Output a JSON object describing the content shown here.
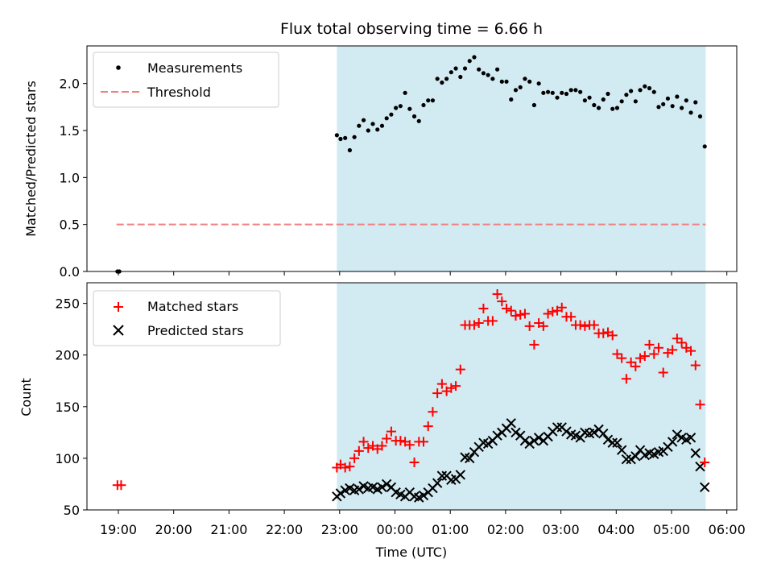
{
  "figure": {
    "title": "Flux total observing time = 6.66 h"
  },
  "colors": {
    "measurement": "#000000",
    "threshold": "#f08080",
    "matched": "#ff0000",
    "predicted": "#000000",
    "observing_span": "#add8e6"
  },
  "chart_data": [
    {
      "type": "scatter",
      "panel": "top",
      "title": "Flux total observing time = 6.66 h",
      "ylabel": "Matched/Predicted stars",
      "xlabel": "",
      "ylim": [
        0,
        2.4
      ],
      "yticks": [
        0.0,
        0.5,
        1.0,
        1.5,
        2.0
      ],
      "ytick_labels": [
        "0.0",
        "0.5",
        "1.0",
        "1.5",
        "2.0"
      ],
      "grid": false,
      "legend_position": "top-left",
      "shaded_span": [
        "22:57",
        "05:37"
      ],
      "legend": {
        "measurements": "Measurements",
        "threshold": "Threshold"
      },
      "threshold": {
        "y": 0.5,
        "x_range": [
          "18:58",
          "05:37"
        ]
      },
      "series": [
        {
          "name": "Measurements",
          "points": [
            [
              "18:59",
              0.0
            ],
            [
              "19:01",
              0.0
            ],
            [
              "22:57",
              1.45
            ],
            [
              "23:01",
              1.41
            ],
            [
              "23:06",
              1.42
            ],
            [
              "23:11",
              1.29
            ],
            [
              "23:16",
              1.43
            ],
            [
              "23:21",
              1.55
            ],
            [
              "23:26",
              1.61
            ],
            [
              "23:31",
              1.5
            ],
            [
              "23:36",
              1.57
            ],
            [
              "23:41",
              1.51
            ],
            [
              "23:46",
              1.55
            ],
            [
              "23:51",
              1.63
            ],
            [
              "23:56",
              1.67
            ],
            [
              "00:01",
              1.74
            ],
            [
              "00:06",
              1.76
            ],
            [
              "00:11",
              1.9
            ],
            [
              "00:16",
              1.73
            ],
            [
              "00:21",
              1.65
            ],
            [
              "00:26",
              1.6
            ],
            [
              "00:31",
              1.77
            ],
            [
              "00:36",
              1.82
            ],
            [
              "00:41",
              1.82
            ],
            [
              "00:46",
              2.05
            ],
            [
              "00:51",
              2.01
            ],
            [
              "00:56",
              2.05
            ],
            [
              "01:01",
              2.12
            ],
            [
              "01:06",
              2.16
            ],
            [
              "01:11",
              2.07
            ],
            [
              "01:16",
              2.16
            ],
            [
              "01:21",
              2.24
            ],
            [
              "01:26",
              2.28
            ],
            [
              "01:31",
              2.15
            ],
            [
              "01:36",
              2.11
            ],
            [
              "01:41",
              2.09
            ],
            [
              "01:46",
              2.05
            ],
            [
              "01:51",
              2.15
            ],
            [
              "01:56",
              2.02
            ],
            [
              "02:01",
              2.02
            ],
            [
              "02:06",
              1.83
            ],
            [
              "02:11",
              1.93
            ],
            [
              "02:16",
              1.96
            ],
            [
              "02:21",
              2.05
            ],
            [
              "02:26",
              2.02
            ],
            [
              "02:31",
              1.77
            ],
            [
              "02:36",
              2.0
            ],
            [
              "02:41",
              1.9
            ],
            [
              "02:46",
              1.91
            ],
            [
              "02:51",
              1.9
            ],
            [
              "02:56",
              1.85
            ],
            [
              "03:01",
              1.9
            ],
            [
              "03:06",
              1.89
            ],
            [
              "03:11",
              1.93
            ],
            [
              "03:16",
              1.93
            ],
            [
              "03:21",
              1.91
            ],
            [
              "03:26",
              1.82
            ],
            [
              "03:31",
              1.85
            ],
            [
              "03:36",
              1.77
            ],
            [
              "03:41",
              1.74
            ],
            [
              "03:46",
              1.83
            ],
            [
              "03:51",
              1.89
            ],
            [
              "03:56",
              1.73
            ],
            [
              "04:01",
              1.74
            ],
            [
              "04:06",
              1.81
            ],
            [
              "04:11",
              1.88
            ],
            [
              "04:16",
              1.92
            ],
            [
              "04:21",
              1.81
            ],
            [
              "04:26",
              1.93
            ],
            [
              "04:31",
              1.97
            ],
            [
              "04:36",
              1.95
            ],
            [
              "04:41",
              1.91
            ],
            [
              "04:46",
              1.75
            ],
            [
              "04:51",
              1.78
            ],
            [
              "04:56",
              1.84
            ],
            [
              "05:01",
              1.76
            ],
            [
              "05:06",
              1.86
            ],
            [
              "05:11",
              1.74
            ],
            [
              "05:16",
              1.82
            ],
            [
              "05:21",
              1.69
            ],
            [
              "05:26",
              1.8
            ],
            [
              "05:31",
              1.65
            ],
            [
              "05:36",
              1.33
            ]
          ]
        }
      ]
    },
    {
      "type": "scatter",
      "panel": "bottom",
      "ylabel": "Count",
      "xlabel": "Time (UTC)",
      "ylim": [
        50,
        270
      ],
      "yticks": [
        50,
        100,
        150,
        200,
        250
      ],
      "ytick_labels": [
        "50",
        "100",
        "150",
        "200",
        "250"
      ],
      "x_ticks": [
        "19:00",
        "20:00",
        "21:00",
        "22:00",
        "23:00",
        "00:00",
        "01:00",
        "02:00",
        "03:00",
        "04:00",
        "05:00",
        "06:00"
      ],
      "grid": false,
      "legend_position": "top-left",
      "shaded_span": [
        "22:57",
        "05:37"
      ],
      "legend": {
        "matched": "Matched stars",
        "predicted": "Predicted stars"
      },
      "series": [
        {
          "name": "Matched stars",
          "marker": "plus",
          "points": [
            [
              "18:59",
              74
            ],
            [
              "19:03",
              74
            ],
            [
              "22:57",
              91
            ],
            [
              "23:01",
              94
            ],
            [
              "23:06",
              91
            ],
            [
              "23:11",
              92
            ],
            [
              "23:16",
              100
            ],
            [
              "23:21",
              107
            ],
            [
              "23:26",
              116
            ],
            [
              "23:31",
              110
            ],
            [
              "23:36",
              112
            ],
            [
              "23:41",
              109
            ],
            [
              "23:46",
              112
            ],
            [
              "23:51",
              119
            ],
            [
              "23:56",
              126
            ],
            [
              "00:01",
              117
            ],
            [
              "00:06",
              117
            ],
            [
              "00:11",
              116
            ],
            [
              "00:16",
              113
            ],
            [
              "00:21",
              96
            ],
            [
              "00:26",
              116
            ],
            [
              "00:31",
              116
            ],
            [
              "00:36",
              131
            ],
            [
              "00:41",
              145
            ],
            [
              "00:46",
              163
            ],
            [
              "00:51",
              172
            ],
            [
              "00:56",
              165
            ],
            [
              "01:01",
              168
            ],
            [
              "01:06",
              170
            ],
            [
              "01:11",
              186
            ],
            [
              "01:16",
              229
            ],
            [
              "01:21",
              229
            ],
            [
              "01:26",
              229
            ],
            [
              "01:31",
              231
            ],
            [
              "01:36",
              245
            ],
            [
              "01:41",
              233
            ],
            [
              "01:46",
              233
            ],
            [
              "01:51",
              259
            ],
            [
              "01:56",
              252
            ],
            [
              "02:01",
              245
            ],
            [
              "02:06",
              243
            ],
            [
              "02:11",
              238
            ],
            [
              "02:16",
              239
            ],
            [
              "02:21",
              240
            ],
            [
              "02:26",
              228
            ],
            [
              "02:31",
              210
            ],
            [
              "02:36",
              231
            ],
            [
              "02:41",
              228
            ],
            [
              "02:46",
              240
            ],
            [
              "02:51",
              242
            ],
            [
              "02:56",
              243
            ],
            [
              "03:01",
              246
            ],
            [
              "03:06",
              237
            ],
            [
              "03:11",
              237
            ],
            [
              "03:16",
              229
            ],
            [
              "03:21",
              229
            ],
            [
              "03:26",
              228
            ],
            [
              "03:31",
              229
            ],
            [
              "03:36",
              229
            ],
            [
              "03:41",
              221
            ],
            [
              "03:46",
              221
            ],
            [
              "03:51",
              222
            ],
            [
              "03:56",
              219
            ],
            [
              "04:01",
              201
            ],
            [
              "04:06",
              197
            ],
            [
              "04:11",
              177
            ],
            [
              "04:16",
              193
            ],
            [
              "04:21",
              189
            ],
            [
              "04:26",
              197
            ],
            [
              "04:31",
              199
            ],
            [
              "04:36",
              210
            ],
            [
              "04:41",
              201
            ],
            [
              "04:46",
              207
            ],
            [
              "04:51",
              183
            ],
            [
              "04:56",
              202
            ],
            [
              "05:01",
              205
            ],
            [
              "05:06",
              216
            ],
            [
              "05:11",
              212
            ],
            [
              "05:16",
              207
            ],
            [
              "05:21",
              204
            ],
            [
              "05:26",
              190
            ],
            [
              "05:31",
              152
            ],
            [
              "05:36",
              96
            ]
          ]
        },
        {
          "name": "Predicted stars",
          "marker": "x",
          "points": [
            [
              "22:57",
              63
            ],
            [
              "23:01",
              66
            ],
            [
              "23:06",
              69
            ],
            [
              "23:11",
              71
            ],
            [
              "23:16",
              69
            ],
            [
              "23:21",
              70
            ],
            [
              "23:26",
              73
            ],
            [
              "23:31",
              71
            ],
            [
              "23:36",
              72
            ],
            [
              "23:41",
              70
            ],
            [
              "23:46",
              72
            ],
            [
              "23:51",
              75
            ],
            [
              "23:56",
              72
            ],
            [
              "00:01",
              67
            ],
            [
              "00:06",
              65
            ],
            [
              "00:11",
              63
            ],
            [
              "00:16",
              67
            ],
            [
              "00:21",
              63
            ],
            [
              "00:26",
              62
            ],
            [
              "00:31",
              64
            ],
            [
              "00:36",
              67
            ],
            [
              "00:41",
              71
            ],
            [
              "00:46",
              76
            ],
            [
              "00:51",
              83
            ],
            [
              "00:56",
              83
            ],
            [
              "01:01",
              79
            ],
            [
              "01:06",
              80
            ],
            [
              "01:11",
              84
            ],
            [
              "01:16",
              101
            ],
            [
              "01:21",
              100
            ],
            [
              "01:26",
              106
            ],
            [
              "01:31",
              111
            ],
            [
              "01:36",
              115
            ],
            [
              "01:41",
              114
            ],
            [
              "01:46",
              117
            ],
            [
              "01:51",
              122
            ],
            [
              "01:56",
              125
            ],
            [
              "02:01",
              129
            ],
            [
              "02:06",
              134
            ],
            [
              "02:11",
              125
            ],
            [
              "02:16",
              122
            ],
            [
              "02:21",
              117
            ],
            [
              "02:26",
              114
            ],
            [
              "02:31",
              117
            ],
            [
              "02:36",
              120
            ],
            [
              "02:41",
              117
            ],
            [
              "02:46",
              121
            ],
            [
              "02:51",
              126
            ],
            [
              "02:56",
              130
            ],
            [
              "03:01",
              130
            ],
            [
              "03:06",
              126
            ],
            [
              "03:11",
              123
            ],
            [
              "03:16",
              122
            ],
            [
              "03:21",
              120
            ],
            [
              "03:26",
              125
            ],
            [
              "03:31",
              124
            ],
            [
              "03:36",
              125
            ],
            [
              "03:41",
              128
            ],
            [
              "03:46",
              124
            ],
            [
              "03:51",
              118
            ],
            [
              "03:56",
              115
            ],
            [
              "04:01",
              115
            ],
            [
              "04:06",
              108
            ],
            [
              "04:11",
              99
            ],
            [
              "04:16",
              99
            ],
            [
              "04:21",
              102
            ],
            [
              "04:26",
              108
            ],
            [
              "04:31",
              103
            ],
            [
              "04:36",
              105
            ],
            [
              "04:41",
              104
            ],
            [
              "04:46",
              106
            ],
            [
              "04:51",
              107
            ],
            [
              "04:56",
              111
            ],
            [
              "05:01",
              116
            ],
            [
              "05:06",
              123
            ],
            [
              "05:11",
              120
            ],
            [
              "05:16",
              118
            ],
            [
              "05:21",
              120
            ],
            [
              "05:26",
              105
            ],
            [
              "05:31",
              92
            ],
            [
              "05:36",
              72
            ]
          ]
        }
      ]
    }
  ]
}
